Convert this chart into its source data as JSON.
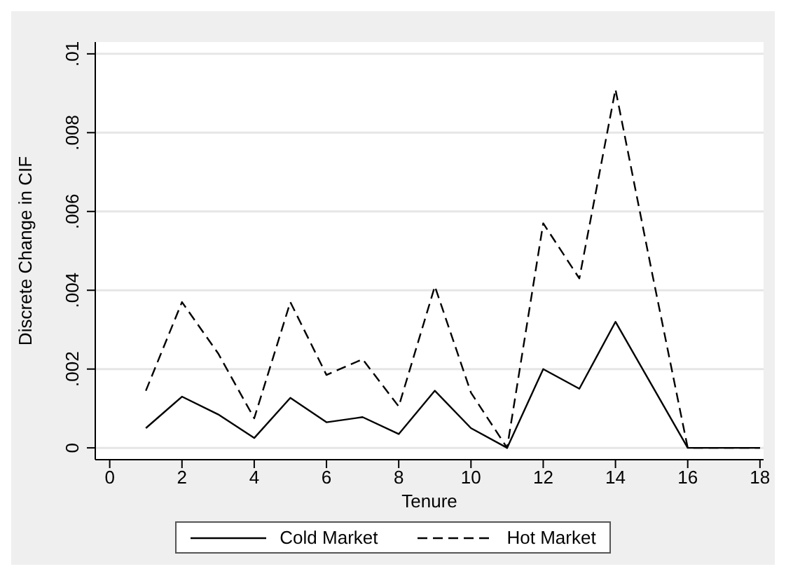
{
  "chart_data": {
    "type": "line",
    "xlabel": "Tenure",
    "ylabel": "Discrete Change in CIF",
    "x": [
      1,
      2,
      3,
      4,
      5,
      6,
      7,
      8,
      9,
      10,
      11,
      12,
      13,
      14,
      15,
      16,
      17,
      18
    ],
    "series": [
      {
        "name": "Cold Market",
        "color": "#000000",
        "line_style": "solid",
        "values": [
          0.0005,
          0.0013,
          0.00085,
          0.00025,
          0.00127,
          0.00065,
          0.00078,
          0.00035,
          0.00145,
          0.0005,
          0,
          0.002,
          0.0015,
          0.0032,
          0.0016,
          0,
          0,
          0
        ]
      },
      {
        "name": "Hot Market",
        "color": "#000000",
        "line_style": "dashed",
        "values": [
          0.00145,
          0.0037,
          0.0024,
          0.00075,
          0.0037,
          0.00185,
          0.00225,
          0.00105,
          0.0041,
          0.0014,
          0,
          0.0057,
          0.0043,
          0.0091,
          0.0045,
          0,
          0,
          0
        ]
      }
    ],
    "xlim": [
      -0.4,
      18.1
    ],
    "xticks": [
      0,
      2,
      4,
      6,
      8,
      10,
      12,
      14,
      16,
      18
    ],
    "ylim": [
      -0.0003,
      0.0103
    ],
    "yticks": [
      0,
      {
        "value": 0.002,
        "label": ".002"
      },
      {
        "value": 0.004,
        "label": ".004"
      },
      {
        "value": 0.006,
        "label": ".006"
      },
      {
        "value": 0.008,
        "label": ".008"
      },
      {
        "value": 0.01,
        "label": ".01"
      }
    ],
    "grid": "y",
    "legend": "bottom",
    "marker": "none"
  }
}
